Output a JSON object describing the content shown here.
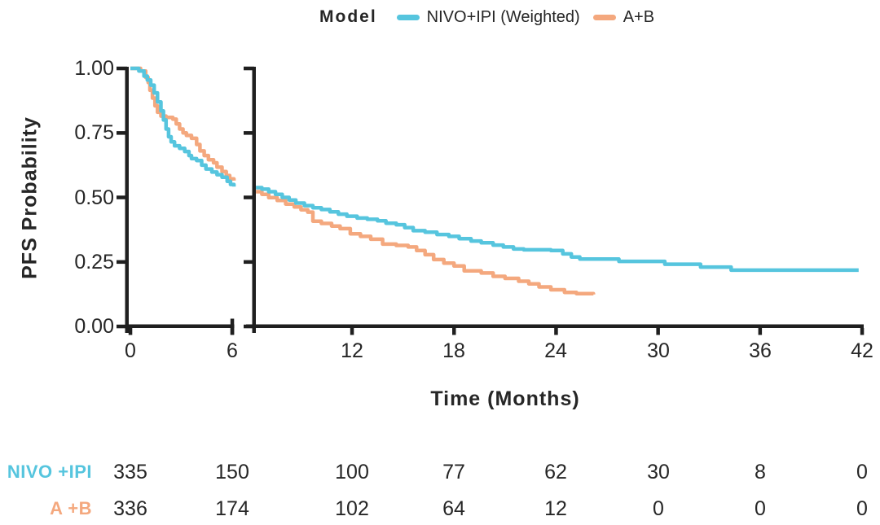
{
  "legend": {
    "title": "Model",
    "items": [
      {
        "label": "NIVO+IPI (Weighted)",
        "color": "#56C5DE"
      },
      {
        "label": "A+B",
        "color": "#F4A87E"
      }
    ]
  },
  "chart_data": {
    "type": "line",
    "subtype": "kaplan-meier-step-curve",
    "title": "",
    "xlabel": "Time (Months)",
    "ylabel": "PFS Probability",
    "xlim": [
      0,
      42
    ],
    "ylim": [
      0.0,
      1.0
    ],
    "x_axis_break_between_months": [
      6.1,
      6.35
    ],
    "grid": false,
    "legend_position": "top-center",
    "axis_color": "#1f1f1f",
    "x_ticks": [
      {
        "v": 0,
        "label": "0"
      },
      {
        "v": 6,
        "label": "6"
      },
      {
        "v": 12,
        "label": "12"
      },
      {
        "v": 18,
        "label": "18"
      },
      {
        "v": 24,
        "label": "24"
      },
      {
        "v": 30,
        "label": "30"
      },
      {
        "v": 36,
        "label": "36"
      },
      {
        "v": 42,
        "label": "42"
      }
    ],
    "y_ticks": [
      {
        "v": 1.0,
        "label": "1.00"
      },
      {
        "v": 0.75,
        "label": "0.75"
      },
      {
        "v": 0.5,
        "label": "0.50"
      },
      {
        "v": 0.25,
        "label": "0.25"
      },
      {
        "v": 0.0,
        "label": "0.00"
      }
    ],
    "series": [
      {
        "name": "NIVO+IPI (Weighted)",
        "color": "#56C5DE",
        "steps_panel1": [
          [
            0,
            1.0
          ],
          [
            0.5,
            0.99
          ],
          [
            0.8,
            0.97
          ],
          [
            1.0,
            0.955
          ],
          [
            1.2,
            0.935
          ],
          [
            1.4,
            0.905
          ],
          [
            1.6,
            0.87
          ],
          [
            1.8,
            0.835
          ],
          [
            1.95,
            0.8
          ],
          [
            2.1,
            0.765
          ],
          [
            2.25,
            0.735
          ],
          [
            2.4,
            0.715
          ],
          [
            2.6,
            0.7
          ],
          [
            2.9,
            0.69
          ],
          [
            3.2,
            0.678
          ],
          [
            3.45,
            0.662
          ],
          [
            3.6,
            0.65
          ],
          [
            3.9,
            0.643
          ],
          [
            4.2,
            0.625
          ],
          [
            4.45,
            0.61
          ],
          [
            4.8,
            0.598
          ],
          [
            5.1,
            0.588
          ],
          [
            5.4,
            0.578
          ],
          [
            5.7,
            0.562
          ],
          [
            5.9,
            0.55
          ],
          [
            6.1,
            0.542
          ]
        ],
        "steps_panel2": [
          [
            6.35,
            0.538
          ],
          [
            6.7,
            0.532
          ],
          [
            7.1,
            0.522
          ],
          [
            7.5,
            0.512
          ],
          [
            7.9,
            0.5
          ],
          [
            8.3,
            0.49
          ],
          [
            8.7,
            0.478
          ],
          [
            9.2,
            0.468
          ],
          [
            9.7,
            0.46
          ],
          [
            10.2,
            0.453
          ],
          [
            10.7,
            0.444
          ],
          [
            11.2,
            0.435
          ],
          [
            11.7,
            0.427
          ],
          [
            12.3,
            0.42
          ],
          [
            12.9,
            0.415
          ],
          [
            13.5,
            0.409
          ],
          [
            14.0,
            0.4
          ],
          [
            14.6,
            0.394
          ],
          [
            15.1,
            0.383
          ],
          [
            15.6,
            0.371
          ],
          [
            16.3,
            0.365
          ],
          [
            17.0,
            0.356
          ],
          [
            17.7,
            0.349
          ],
          [
            18.3,
            0.34
          ],
          [
            19.0,
            0.331
          ],
          [
            19.6,
            0.324
          ],
          [
            20.3,
            0.315
          ],
          [
            20.9,
            0.308
          ],
          [
            21.5,
            0.3
          ],
          [
            22.1,
            0.297
          ],
          [
            23.7,
            0.294
          ],
          [
            24.4,
            0.281
          ],
          [
            24.9,
            0.269
          ],
          [
            25.4,
            0.261
          ],
          [
            27.7,
            0.252
          ],
          [
            30.4,
            0.241
          ],
          [
            32.5,
            0.23
          ],
          [
            34.3,
            0.218
          ],
          [
            41.8,
            0.218
          ]
        ]
      },
      {
        "name": "A+B",
        "color": "#F4A87E",
        "steps_panel1": [
          [
            0,
            1.0
          ],
          [
            0.6,
            0.99
          ],
          [
            0.9,
            0.965
          ],
          [
            1.05,
            0.945
          ],
          [
            1.15,
            0.915
          ],
          [
            1.3,
            0.885
          ],
          [
            1.45,
            0.855
          ],
          [
            1.6,
            0.83
          ],
          [
            1.8,
            0.815
          ],
          [
            2.1,
            0.81
          ],
          [
            2.5,
            0.803
          ],
          [
            2.7,
            0.785
          ],
          [
            2.9,
            0.765
          ],
          [
            3.1,
            0.75
          ],
          [
            3.3,
            0.74
          ],
          [
            3.6,
            0.729
          ],
          [
            3.9,
            0.705
          ],
          [
            4.1,
            0.68
          ],
          [
            4.35,
            0.662
          ],
          [
            4.6,
            0.646
          ],
          [
            4.9,
            0.634
          ],
          [
            5.1,
            0.617
          ],
          [
            5.4,
            0.6
          ],
          [
            5.65,
            0.585
          ],
          [
            5.85,
            0.572
          ],
          [
            6.1,
            0.565
          ]
        ],
        "steps_panel2": [
          [
            6.35,
            0.522
          ],
          [
            6.7,
            0.512
          ],
          [
            7.1,
            0.499
          ],
          [
            7.6,
            0.488
          ],
          [
            8.1,
            0.474
          ],
          [
            8.6,
            0.463
          ],
          [
            9.0,
            0.452
          ],
          [
            9.4,
            0.443
          ],
          [
            9.7,
            0.408
          ],
          [
            10.2,
            0.399
          ],
          [
            10.8,
            0.389
          ],
          [
            11.3,
            0.379
          ],
          [
            11.9,
            0.359
          ],
          [
            12.5,
            0.349
          ],
          [
            13.1,
            0.338
          ],
          [
            13.8,
            0.319
          ],
          [
            14.6,
            0.314
          ],
          [
            15.3,
            0.308
          ],
          [
            15.8,
            0.294
          ],
          [
            16.3,
            0.278
          ],
          [
            16.8,
            0.259
          ],
          [
            17.4,
            0.245
          ],
          [
            18.0,
            0.234
          ],
          [
            18.6,
            0.215
          ],
          [
            19.6,
            0.207
          ],
          [
            20.3,
            0.194
          ],
          [
            21.0,
            0.186
          ],
          [
            21.8,
            0.175
          ],
          [
            22.4,
            0.165
          ],
          [
            23.0,
            0.153
          ],
          [
            23.7,
            0.142
          ],
          [
            24.5,
            0.132
          ],
          [
            25.2,
            0.127
          ],
          [
            26.2,
            0.124
          ]
        ]
      }
    ],
    "numbers_at_risk": {
      "time_points": [
        0,
        6,
        12,
        18,
        24,
        30,
        36,
        42
      ],
      "rows": [
        {
          "label": "NIVO +IPI",
          "color": "#56C5DE",
          "values": [
            335,
            150,
            100,
            77,
            62,
            30,
            8,
            0
          ]
        },
        {
          "label": "A +B",
          "color": "#F4A87E",
          "values": [
            336,
            174,
            102,
            64,
            12,
            0,
            0,
            0
          ]
        }
      ]
    }
  }
}
